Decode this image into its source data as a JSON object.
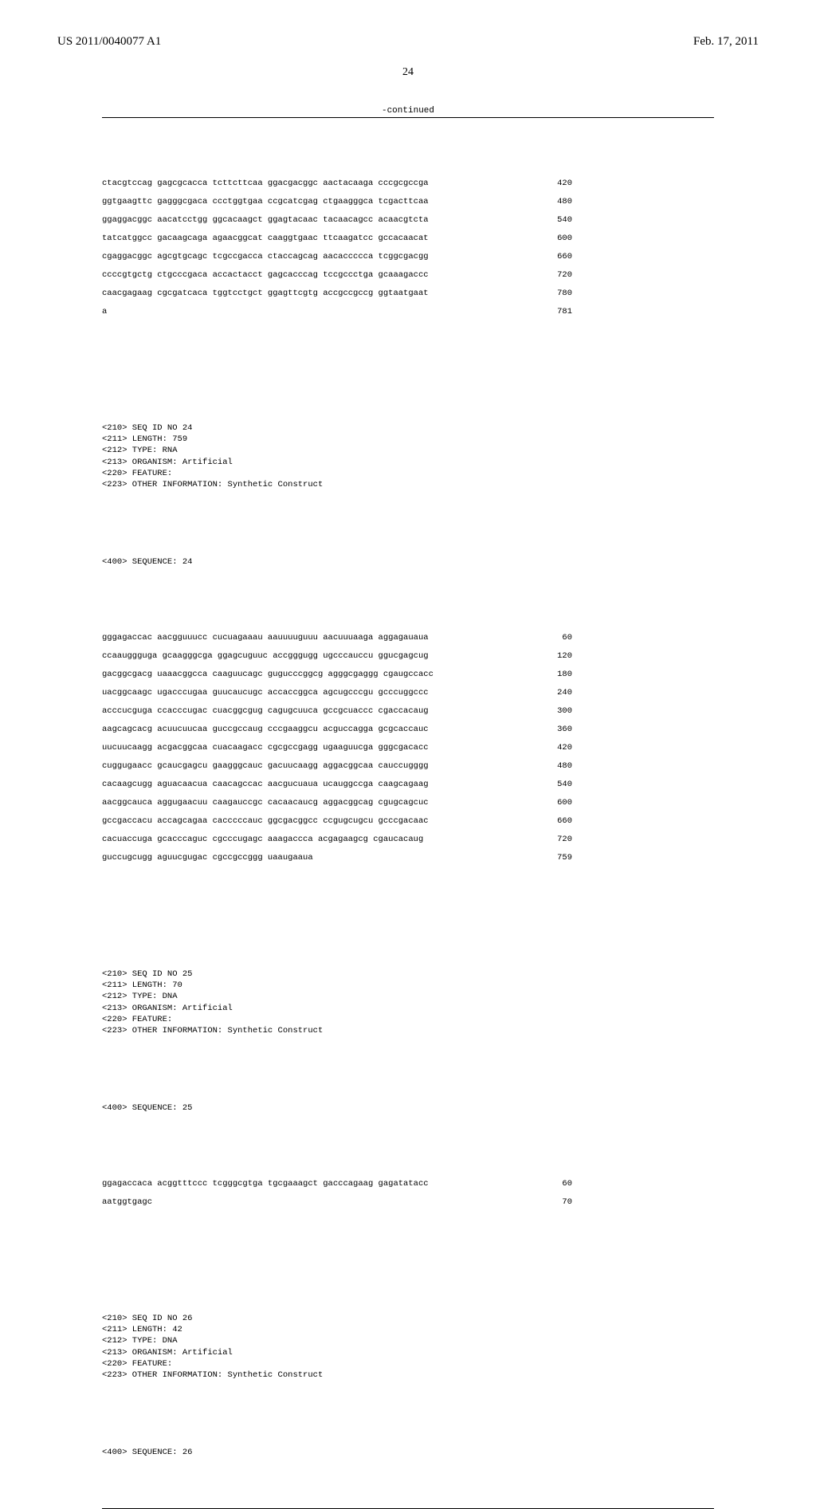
{
  "header": {
    "left": "US 2011/0040077 A1",
    "right": "Feb. 17, 2011"
  },
  "page_number": "24",
  "continued": "-continued",
  "seq23_rows": [
    {
      "t": "ctacgtccag gagcgcacca tcttcttcaa ggacgacggc aactacaaga cccgcgccga",
      "n": "420"
    },
    {
      "t": "ggtgaagttc gagggcgaca ccctggtgaa ccgcatcgag ctgaagggca tcgacttcaa",
      "n": "480"
    },
    {
      "t": "ggaggacggc aacatcctgg ggcacaagct ggagtacaac tacaacagcc acaacgtcta",
      "n": "540"
    },
    {
      "t": "tatcatggcc gacaagcaga agaacggcat caaggtgaac ttcaagatcc gccacaacat",
      "n": "600"
    },
    {
      "t": "cgaggacggc agcgtgcagc tcgccgacca ctaccagcag aacaccccca tcggcgacgg",
      "n": "660"
    },
    {
      "t": "ccccgtgctg ctgcccgaca accactacct gagcacccag tccgccctga gcaaagaccc",
      "n": "720"
    },
    {
      "t": "caacgagaag cgcgatcaca tggtcctgct ggagttcgtg accgccgccg ggtaatgaat",
      "n": "780"
    },
    {
      "t": "a",
      "n": "781"
    }
  ],
  "seq24_meta": [
    "<210> SEQ ID NO 24",
    "<211> LENGTH: 759",
    "<212> TYPE: RNA",
    "<213> ORGANISM: Artificial",
    "<220> FEATURE:",
    "<223> OTHER INFORMATION: Synthetic Construct"
  ],
  "seq24_header": "<400> SEQUENCE: 24",
  "seq24_rows": [
    {
      "t": "gggagaccac aacgguuucc cucuagaaau aauuuuguuu aacuuuaaga aggagauaua",
      "n": "60"
    },
    {
      "t": "ccaauggguga gcaagggcga ggagcuguuc accgggugg ugcccauccu ggucgagcug",
      "n": "120"
    },
    {
      "t": "gacggcgacg uaaacggcca caaguucagc gugucccggcg agggcgaggg cgaugccacc",
      "n": "180"
    },
    {
      "t": "uacggcaagc ugacccugaa guucaucugc accaccggca agcugcccgu gcccuggccc",
      "n": "240"
    },
    {
      "t": "acccucguga ccacccugac cuacggcgug cagugcuuca gccgcuaccc cgaccacaug",
      "n": "300"
    },
    {
      "t": "aagcagcacg acuucuucaa guccgccaug cccgaaggcu acguccagga gcgcaccauc",
      "n": "360"
    },
    {
      "t": "uucuucaagg acgacggcaa cuacaagacc cgcgccgagg ugaaguucga gggcgacacc",
      "n": "420"
    },
    {
      "t": "cuggugaacc gcaucgagcu gaagggcauc gacuucaagg aggacggcaa cauccugggg",
      "n": "480"
    },
    {
      "t": "cacaagcugg aguacaacua caacagccac aacgucuaua ucauggccga caagcagaag",
      "n": "540"
    },
    {
      "t": "aacggcauca aggugaacuu caagauccgc cacaacaucg aggacggcag cgugcagcuc",
      "n": "600"
    },
    {
      "t": "gccgaccacu accagcagaa cacccccauc ggcgacggcc ccgugcugcu gcccgacaac",
      "n": "660"
    },
    {
      "t": "cacuaccuga gcacccaguc cgcccugagc aaagaccca acgagaagcg cgaucacaug",
      "n": "720"
    },
    {
      "t": "guccugcugg aguucgugac cgccgccggg uaaugaaua",
      "n": "759"
    }
  ],
  "seq25_meta": [
    "<210> SEQ ID NO 25",
    "<211> LENGTH: 70",
    "<212> TYPE: DNA",
    "<213> ORGANISM: Artificial",
    "<220> FEATURE:",
    "<223> OTHER INFORMATION: Synthetic Construct"
  ],
  "seq25_header": "<400> SEQUENCE: 25",
  "seq25_rows": [
    {
      "t": "ggagaccaca acggtttccc tcgggcgtga tgcgaaagct gacccagaag gagatatacc",
      "n": "60"
    },
    {
      "t": "aatggtgagc",
      "n": "70"
    }
  ],
  "seq26_meta": [
    "<210> SEQ ID NO 26",
    "<211> LENGTH: 42",
    "<212> TYPE: DNA",
    "<213> ORGANISM: Artificial",
    "<220> FEATURE:",
    "<223> OTHER INFORMATION: Synthetic Construct"
  ],
  "seq26_header": "<400> SEQUENCE: 26"
}
